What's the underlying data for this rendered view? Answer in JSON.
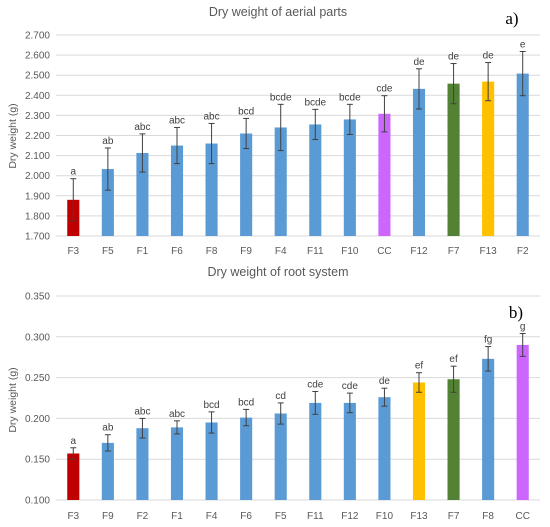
{
  "chart_data": [
    {
      "type": "bar",
      "title": "Dry weight of aerial parts",
      "panel_label": "a)",
      "ylabel": "Dry weight (g)",
      "xlabel": "",
      "ylim": [
        1.7,
        2.7
      ],
      "yticks": [
        "1.700",
        "1.800",
        "1.900",
        "2.000",
        "2.100",
        "2.200",
        "2.300",
        "2.400",
        "2.500",
        "2.600",
        "2.700"
      ],
      "grid": true,
      "categories": [
        "F3",
        "F5",
        "F1",
        "F6",
        "F8",
        "F9",
        "F4",
        "F11",
        "F10",
        "CC",
        "F12",
        "F7",
        "F13",
        "F2"
      ],
      "values": [
        1.88,
        2.033,
        2.113,
        2.15,
        2.16,
        2.21,
        2.24,
        2.255,
        2.28,
        2.308,
        2.432,
        2.458,
        2.468,
        2.508
      ],
      "errors": [
        0.105,
        0.105,
        0.095,
        0.09,
        0.1,
        0.075,
        0.115,
        0.075,
        0.075,
        0.09,
        0.1,
        0.1,
        0.095,
        0.11
      ],
      "letters": [
        "a",
        "ab",
        "abc",
        "abc",
        "abc",
        "bcd",
        "bcde",
        "bcde",
        "bcde",
        "cde",
        "de",
        "de",
        "de",
        "e"
      ],
      "colors": [
        "#c00000",
        "#5b9bd5",
        "#5b9bd5",
        "#5b9bd5",
        "#5b9bd5",
        "#5b9bd5",
        "#5b9bd5",
        "#5b9bd5",
        "#5b9bd5",
        "#cc66ff",
        "#5b9bd5",
        "#548235",
        "#ffc000",
        "#5b9bd5"
      ]
    },
    {
      "type": "bar",
      "title": "Dry weight of root system",
      "panel_label": "b)",
      "ylabel": "Dry weight (g)",
      "xlabel": "",
      "ylim": [
        0.1,
        0.35
      ],
      "yticks": [
        "0.100",
        "0.150",
        "0.200",
        "0.250",
        "0.300",
        "0.350"
      ],
      "grid": true,
      "categories": [
        "F3",
        "F9",
        "F2",
        "F1",
        "F4",
        "F6",
        "F5",
        "F11",
        "F12",
        "F10",
        "F13",
        "F7",
        "F8",
        "CC"
      ],
      "values": [
        0.157,
        0.17,
        0.188,
        0.189,
        0.195,
        0.201,
        0.206,
        0.219,
        0.219,
        0.226,
        0.244,
        0.248,
        0.273,
        0.29
      ],
      "errors": [
        0.007,
        0.01,
        0.012,
        0.008,
        0.013,
        0.01,
        0.013,
        0.014,
        0.012,
        0.011,
        0.012,
        0.016,
        0.015,
        0.014
      ],
      "letters": [
        "a",
        "ab",
        "abc",
        "abc",
        "bcd",
        "bcd",
        "cd",
        "cde",
        "cde",
        "de",
        "ef",
        "ef",
        "fg",
        "g"
      ],
      "colors": [
        "#c00000",
        "#5b9bd5",
        "#5b9bd5",
        "#5b9bd5",
        "#5b9bd5",
        "#5b9bd5",
        "#5b9bd5",
        "#5b9bd5",
        "#5b9bd5",
        "#5b9bd5",
        "#ffc000",
        "#548235",
        "#5b9bd5",
        "#cc66ff"
      ]
    }
  ]
}
